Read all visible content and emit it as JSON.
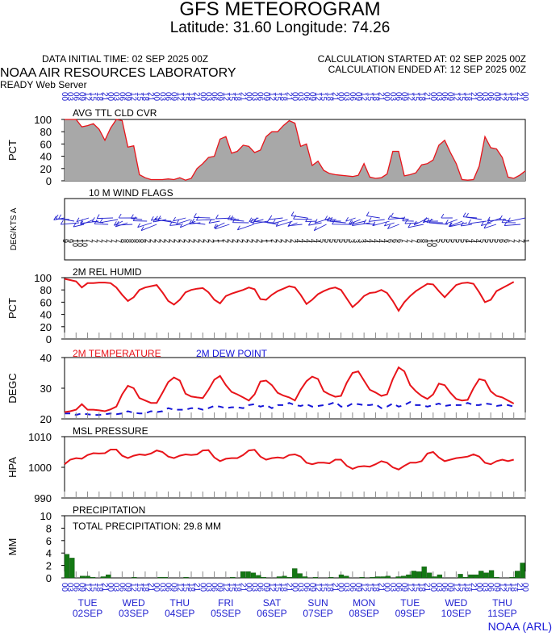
{
  "header": {
    "title": "GFS METEOROGRAM",
    "subtitle": "Latitude: 31.60 Longitude:  74.26",
    "data_initial_time": "DATA INITIAL TIME: 02 SEP 2025 00Z",
    "calculation_started": "CALCULATION STARTED AT: 02 SEP 2025 00Z",
    "calculation_ended": "CALCULATION ENDED AT: 12 SEP 2025 00Z",
    "organization": "NOAA AIR RESOURCES LABORATORY",
    "server": "READY Web Server"
  },
  "footer": {
    "credit": "NOAA (ARL)"
  },
  "colors": {
    "cloud_fill": "#a8a8a8",
    "red": "#e8141a",
    "blue": "#1515d8",
    "precip": "#137813",
    "axis_blue": "#2323d0"
  },
  "time_axis": {
    "hour_labels": [
      "00",
      "03",
      "06",
      "09",
      "12",
      "15",
      "18",
      "21"
    ],
    "day_labels": [
      {
        "weekday": "TUE",
        "date": "02SEP"
      },
      {
        "weekday": "WED",
        "date": "03SEP"
      },
      {
        "weekday": "THU",
        "date": "04SEP"
      },
      {
        "weekday": "FRI",
        "date": "05SEP"
      },
      {
        "weekday": "SAT",
        "date": "06SEP"
      },
      {
        "weekday": "SUN",
        "date": "07SEP"
      },
      {
        "weekday": "MON",
        "date": "08SEP"
      },
      {
        "weekday": "TUE",
        "date": "09SEP"
      },
      {
        "weekday": "WED",
        "date": "10SEP"
      },
      {
        "weekday": "THU",
        "date": "11SEP"
      }
    ]
  },
  "chart_data": [
    {
      "type": "area",
      "label": "AVG TTL CLD CVR",
      "ylabel": "PCT",
      "ylim": [
        0,
        100
      ],
      "yticks": [
        0,
        20,
        40,
        60,
        80,
        100
      ],
      "x_interval_hours": 3,
      "values": [
        100,
        100,
        100,
        88,
        90,
        93,
        84,
        66,
        86,
        100,
        98,
        55,
        57,
        10,
        5,
        2,
        2,
        2,
        3,
        2,
        5,
        1,
        4,
        20,
        28,
        38,
        40,
        68,
        72,
        45,
        48,
        58,
        56,
        46,
        50,
        72,
        80,
        80,
        90,
        98,
        94,
        56,
        60,
        25,
        32,
        17,
        12,
        10,
        9,
        8,
        7,
        9,
        28,
        6,
        4,
        5,
        11,
        48,
        48,
        8,
        10,
        13,
        26,
        28,
        34,
        58,
        66,
        46,
        28,
        2,
        1,
        2,
        24,
        72,
        54,
        52,
        38,
        6,
        4,
        9,
        16
      ]
    },
    {
      "type": "wind_barbs",
      "label": "10 M  WIND FLAGS",
      "ylabel": "DEG/KTS  A",
      "speed_labels": [
        "9",
        "9",
        "10",
        "10",
        "10",
        "7",
        "7",
        "7",
        "7",
        "7",
        "7",
        "7",
        "8",
        "8",
        "8",
        "8",
        "8",
        "2",
        "2",
        "2",
        "2",
        "2",
        "2",
        "2",
        "2",
        "2",
        "2",
        "2",
        "2",
        "2",
        "2",
        "1",
        "1",
        "2",
        "2",
        "2",
        "2",
        "2",
        "2",
        "2",
        "2",
        "1",
        "1",
        "2",
        "2",
        "2",
        "2",
        "2",
        "4",
        "4",
        "4",
        "4",
        "4",
        "5",
        "5",
        "5",
        "5",
        "5",
        "5",
        "3",
        "3",
        "3",
        "4",
        "4",
        "4",
        "4",
        "4",
        "6",
        "6",
        "6",
        "7",
        "7",
        "7",
        "8",
        "8",
        "10",
        "10",
        "5",
        "5",
        "5",
        "5",
        "5",
        "5",
        "4",
        "4",
        "4",
        "5",
        "5",
        "5",
        "5",
        "6",
        "6",
        "7",
        "7",
        "7",
        "1"
      ]
    },
    {
      "type": "line",
      "label": "2M REL HUMID",
      "ylabel": "PCT",
      "ylim": [
        0,
        100
      ],
      "yticks": [
        0,
        20,
        40,
        60,
        80,
        100
      ],
      "x_interval_hours": 3,
      "series": [
        {
          "values": [
            98,
            96,
            94,
            84,
            91,
            91,
            92,
            92,
            91,
            84,
            72,
            62,
            68,
            80,
            84,
            86,
            88,
            76,
            62,
            56,
            64,
            76,
            80,
            82,
            83,
            76,
            64,
            58,
            70,
            74,
            77,
            80,
            84,
            81,
            65,
            64,
            72,
            78,
            82,
            86,
            84,
            72,
            57,
            64,
            73,
            78,
            82,
            84,
            80,
            66,
            52,
            60,
            70,
            75,
            76,
            80,
            75,
            62,
            46,
            60,
            70,
            78,
            84,
            90,
            89,
            78,
            68,
            78,
            88,
            91,
            92,
            90,
            76,
            60,
            64,
            78,
            83,
            88,
            93
          ]
        }
      ]
    },
    {
      "type": "line",
      "label": "2M TEMPERATURE",
      "label2": "2M  DEW POINT",
      "ylabel": "DEGC",
      "ylim": [
        20,
        40
      ],
      "yticks": [
        20,
        30,
        40
      ],
      "x_interval_hours": 3,
      "series": [
        {
          "name": "2M TEMPERATURE",
          "values": [
            22.2,
            22.5,
            23.0,
            24.8,
            23.0,
            23.0,
            22.8,
            22.5,
            23.1,
            24.0,
            28.0,
            30.8,
            30.0,
            26.8,
            26.0,
            25.2,
            25.2,
            28.5,
            32.0,
            33.5,
            32.5,
            28.2,
            27.3,
            27.0,
            26.8,
            29.5,
            32.8,
            34.0,
            31.0,
            28.8,
            28.0,
            27.0,
            26.0,
            28.0,
            32.2,
            32.5,
            31.0,
            28.5,
            27.6,
            27.0,
            26.0,
            29.5,
            32.3,
            33.8,
            33.0,
            29.0,
            28.0,
            27.2,
            27.5,
            31.8,
            35.0,
            35.5,
            32.5,
            29.5,
            28.6,
            27.5,
            28.0,
            33.0,
            36.8,
            35.5,
            31.0,
            29.0,
            27.5,
            26.5,
            28.0,
            31.5,
            31.0,
            28.5,
            26.5,
            26.0,
            26.2,
            30.0,
            33.0,
            32.5,
            29.0,
            27.5,
            27.0,
            26.0,
            25.0
          ]
        },
        {
          "name": "2M  DEW POINT",
          "values": [
            21.8,
            21.8,
            21.3,
            21.8,
            21.5,
            21.3,
            21.3,
            21.5,
            21.8,
            21.5,
            21.8,
            22.5,
            22.0,
            21.8,
            21.8,
            22.5,
            22.2,
            22.5,
            23.5,
            23.0,
            23.0,
            23.0,
            23.5,
            23.5,
            23.0,
            23.5,
            24.2,
            24.0,
            23.5,
            23.8,
            23.8,
            23.5,
            24.5,
            24.8,
            24.0,
            24.5,
            23.5,
            24.5,
            24.5,
            25.2,
            24.5,
            24.2,
            24.8,
            24.0,
            24.2,
            24.5,
            24.8,
            25.5,
            24.0,
            24.0,
            25.0,
            24.8,
            24.5,
            24.5,
            24.8,
            23.5,
            24.0,
            25.0,
            24.0,
            24.5,
            25.5,
            24.5,
            24.5,
            24.0,
            24.5,
            25.0,
            24.2,
            24.5,
            24.5,
            24.5,
            25.2,
            24.5,
            24.5,
            25.0,
            24.8,
            24.2,
            24.5,
            24.5,
            24.0
          ]
        }
      ]
    },
    {
      "type": "line",
      "label": "MSL PRESSURE",
      "ylabel": "HPA",
      "ylim": [
        990,
        1010
      ],
      "yticks": [
        990,
        1000,
        1010
      ],
      "x_interval_hours": 3,
      "series": [
        {
          "values": [
            1001.0,
            1002.5,
            1003.0,
            1002.8,
            1004.0,
            1004.6,
            1004.5,
            1004.6,
            1005.8,
            1005.8,
            1003.8,
            1003.0,
            1003.8,
            1004.2,
            1004.0,
            1004.5,
            1005.5,
            1005.0,
            1003.5,
            1003.0,
            1003.8,
            1004.2,
            1004.0,
            1004.2,
            1005.5,
            1005.6,
            1003.2,
            1002.0,
            1002.8,
            1003.0,
            1003.0,
            1004.0,
            1005.5,
            1005.7,
            1003.5,
            1002.5,
            1003.0,
            1003.2,
            1003.0,
            1004.0,
            1004.2,
            1003.5,
            1001.5,
            1001.0,
            1001.5,
            1001.5,
            1001.3,
            1002.5,
            1002.5,
            1000.5,
            999.5,
            1000.2,
            1000.4,
            1000.2,
            1001.0,
            1002.0,
            1001.5,
            1000.0,
            999.3,
            1000.5,
            1001.5,
            1001.5,
            1002.0,
            1004.5,
            1005.0,
            1003.2,
            1002.0,
            1002.5,
            1003.0,
            1003.2,
            1003.5,
            1004.2,
            1003.5,
            1001.5,
            1001.0,
            1002.0,
            1002.5,
            1002.0,
            1002.5
          ]
        }
      ]
    },
    {
      "type": "bar",
      "label": "PRECIPITATION",
      "total_label": "TOTAL PRECIPITATION:  29.8 MM",
      "ylabel": "MM",
      "ylim": [
        0,
        10
      ],
      "yticks": [
        0,
        2,
        4,
        6,
        8,
        10
      ],
      "x_interval_hours": 3,
      "values": [
        3.8,
        3.2,
        0,
        0.3,
        0.3,
        0.1,
        0,
        0.2,
        0.5,
        0,
        0,
        0,
        0,
        0.1,
        0,
        0,
        0,
        0,
        0.1,
        0.1,
        0,
        0,
        0,
        0.1,
        0,
        0,
        0,
        0,
        0,
        0,
        0,
        0,
        0.1,
        0,
        1.0,
        1.0,
        0.8,
        0.4,
        0.1,
        0,
        0,
        0.2,
        0.3,
        0.1,
        1.5,
        0.7,
        0.2,
        0,
        0.1,
        0,
        0,
        0.1,
        0,
        0.5,
        0.3,
        0,
        0,
        0.1,
        0,
        0.1,
        0.2,
        0.2,
        0.3,
        0,
        0.2,
        0.3,
        0.5,
        1.1,
        1.0,
        1.8,
        0.8,
        0.2,
        0.5,
        0,
        0,
        0,
        0.6,
        0.1,
        0.5,
        0.5,
        1.1,
        0.8,
        1.2,
        0.1,
        0,
        0,
        0.1,
        1.1,
        2.4
      ]
    }
  ]
}
